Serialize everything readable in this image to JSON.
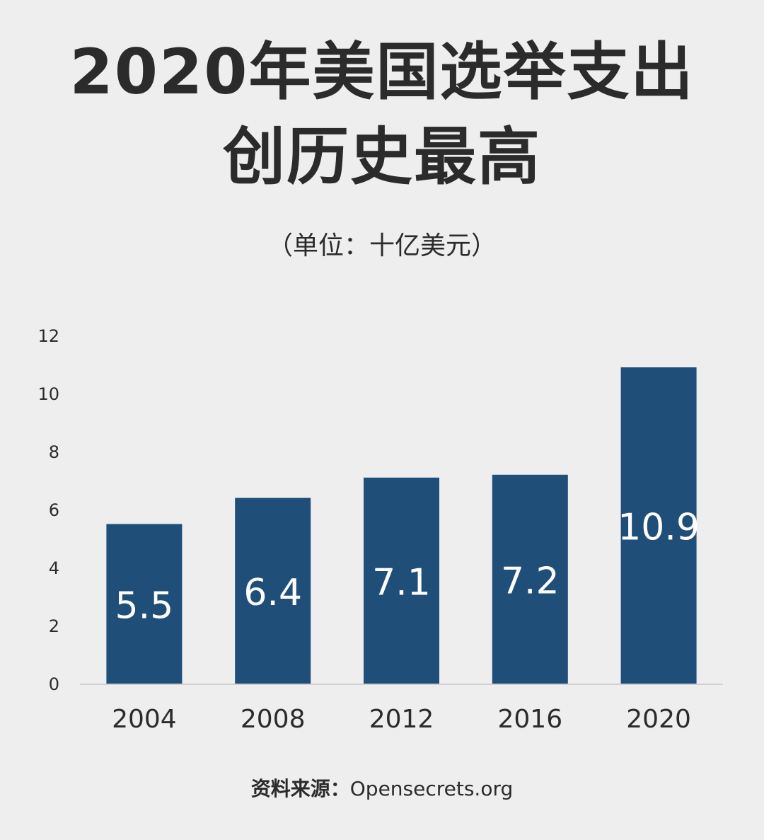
{
  "title": {
    "line1": "2020年美国选举支出",
    "line2": "创历史最高"
  },
  "subtitle": "（单位：十亿美元）",
  "source": {
    "label": "资料来源：",
    "name": "Opensecrets.org"
  },
  "colors": {
    "bar": "#1f4e79",
    "bar_label": "#ffffff",
    "text": "#2b2b2b",
    "axis": "#d0d0d0",
    "background": "#eeeeee"
  },
  "chart_data": {
    "type": "bar",
    "categories": [
      "2004",
      "2008",
      "2012",
      "2016",
      "2020"
    ],
    "values": [
      5.5,
      6.4,
      7.1,
      7.2,
      10.9
    ],
    "data_labels": [
      "5.5",
      "6.4",
      "7.1",
      "7.2",
      "10.9"
    ],
    "title": "2020年美国选举支出创历史最高",
    "subtitle": "（单位：十亿美元）",
    "xlabel": "",
    "ylabel": "",
    "ylim": [
      0,
      12
    ],
    "yticks": [
      "0",
      "2",
      "4",
      "6",
      "8",
      "10",
      "12"
    ],
    "grid": false,
    "legend": "none"
  }
}
